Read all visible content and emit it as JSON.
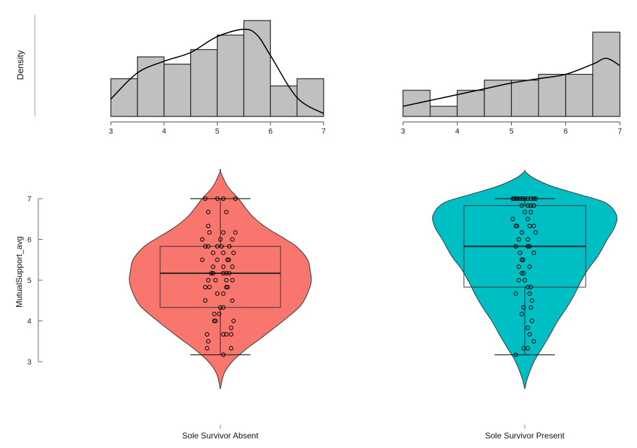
{
  "chart_data": {
    "type": "violin",
    "title": "",
    "xlabel": "",
    "ylabel": "MutualSupport_avg",
    "ylim": [
      3,
      7
    ],
    "yticks": [
      "3",
      "4",
      "5",
      "6",
      "7"
    ],
    "colors": {
      "absent": "#F8766D",
      "present": "#00BFC4",
      "histogram_bar": "#C0C0C0"
    },
    "histograms": [
      {
        "group": "Sole Survivor Absent",
        "ylabel": "Density",
        "xticks": [
          "3",
          "4",
          "5",
          "6",
          "7"
        ],
        "bin_edges": [
          3,
          3.5,
          4,
          4.5,
          5,
          5.5,
          6,
          6.5,
          7
        ],
        "bin_heights": [
          0.26,
          0.41,
          0.36,
          0.46,
          0.56,
          0.66,
          0.21,
          0.26
        ],
        "density_curve": {
          "x": [
            3,
            3.5,
            4,
            4.5,
            5,
            5.5,
            5.75,
            6,
            6.5,
            7
          ],
          "y": [
            0.12,
            0.3,
            0.38,
            0.44,
            0.55,
            0.6,
            0.56,
            0.42,
            0.13,
            0.02
          ]
        }
      },
      {
        "group": "Sole Survivor Present",
        "ylabel": "",
        "xticks": [
          "3",
          "4",
          "5",
          "6",
          "7"
        ],
        "bin_edges": [
          3,
          3.5,
          4,
          4.5,
          5,
          5.5,
          6,
          6.5,
          7
        ],
        "bin_heights": [
          0.18,
          0.07,
          0.18,
          0.25,
          0.25,
          0.29,
          0.29,
          0.58
        ],
        "density_curve": {
          "x": [
            3,
            3.5,
            4,
            4.5,
            5,
            5.5,
            6,
            6.5,
            6.75,
            7
          ],
          "y": [
            0.07,
            0.11,
            0.15,
            0.19,
            0.23,
            0.26,
            0.29,
            0.36,
            0.4,
            0.35
          ]
        }
      }
    ],
    "violins": [
      {
        "group": "Sole Survivor Absent",
        "box": {
          "min": 3.17,
          "q1": 4.33,
          "median": 5.17,
          "q3": 5.83,
          "max": 7.0
        },
        "violin_range": [
          2.33,
          7.67
        ],
        "violin_density": {
          "y": [
            2.33,
            2.7,
            3.0,
            3.3,
            3.6,
            4.0,
            4.3,
            4.5,
            4.8,
            5.0,
            5.2,
            5.5,
            5.8,
            6.0,
            6.3,
            6.6,
            7.0,
            7.3,
            7.67
          ],
          "w": [
            0.0,
            0.04,
            0.13,
            0.28,
            0.46,
            0.69,
            0.85,
            0.92,
            0.98,
            1.0,
            0.99,
            0.96,
            0.85,
            0.72,
            0.5,
            0.34,
            0.2,
            0.08,
            0.0
          ]
        },
        "points": [
          {
            "x": -0.25,
            "y": 7.0
          },
          {
            "x": -0.05,
            "y": 7.0
          },
          {
            "x": 0.05,
            "y": 7.0
          },
          {
            "x": 0.25,
            "y": 7.0
          },
          {
            "x": -0.2,
            "y": 6.67
          },
          {
            "x": 0.1,
            "y": 6.67
          },
          {
            "x": -0.2,
            "y": 6.33
          },
          {
            "x": 0.05,
            "y": 6.17
          },
          {
            "x": 0.25,
            "y": 6.17
          },
          {
            "x": -0.18,
            "y": 6.17
          },
          {
            "x": -0.3,
            "y": 6.0
          },
          {
            "x": 0.0,
            "y": 6.0
          },
          {
            "x": 0.2,
            "y": 6.0
          },
          {
            "x": -0.25,
            "y": 5.83
          },
          {
            "x": -0.2,
            "y": 5.83
          },
          {
            "x": -0.05,
            "y": 5.83
          },
          {
            "x": 0.02,
            "y": 5.83
          },
          {
            "x": 0.15,
            "y": 5.83
          },
          {
            "x": -0.12,
            "y": 5.67
          },
          {
            "x": 0.05,
            "y": 5.67
          },
          {
            "x": 0.22,
            "y": 5.67
          },
          {
            "x": -0.3,
            "y": 5.5
          },
          {
            "x": -0.05,
            "y": 5.5
          },
          {
            "x": 0.12,
            "y": 5.5
          },
          {
            "x": 0.14,
            "y": 5.5
          },
          {
            "x": -0.12,
            "y": 5.33
          },
          {
            "x": 0.05,
            "y": 5.33
          },
          {
            "x": 0.2,
            "y": 5.33
          },
          {
            "x": -0.15,
            "y": 5.17
          },
          {
            "x": -0.12,
            "y": 5.17
          },
          {
            "x": 0.05,
            "y": 5.17
          },
          {
            "x": 0.1,
            "y": 5.17
          },
          {
            "x": 0.15,
            "y": 5.17
          },
          {
            "x": -0.2,
            "y": 5.0
          },
          {
            "x": -0.08,
            "y": 5.0
          },
          {
            "x": 0.1,
            "y": 5.0
          },
          {
            "x": 0.2,
            "y": 5.0
          },
          {
            "x": -0.25,
            "y": 4.83
          },
          {
            "x": -0.18,
            "y": 4.83
          },
          {
            "x": 0.1,
            "y": 4.83
          },
          {
            "x": 0.12,
            "y": 4.83
          },
          {
            "x": -0.05,
            "y": 4.67
          },
          {
            "x": 0.05,
            "y": 4.67
          },
          {
            "x": -0.25,
            "y": 4.5
          },
          {
            "x": 0.2,
            "y": 4.5
          },
          {
            "x": 0.0,
            "y": 4.33
          },
          {
            "x": 0.05,
            "y": 4.33
          },
          {
            "x": -0.1,
            "y": 4.17
          },
          {
            "x": -0.02,
            "y": 4.17
          },
          {
            "x": -0.1,
            "y": 4.0
          },
          {
            "x": -0.08,
            "y": 4.0
          },
          {
            "x": 0.22,
            "y": 4.0
          },
          {
            "x": 0.18,
            "y": 3.83
          },
          {
            "x": -0.22,
            "y": 3.67
          },
          {
            "x": 0.05,
            "y": 3.67
          },
          {
            "x": 0.1,
            "y": 3.67
          },
          {
            "x": 0.18,
            "y": 3.67
          },
          {
            "x": -0.2,
            "y": 3.5
          },
          {
            "x": -0.22,
            "y": 3.33
          },
          {
            "x": 0.18,
            "y": 3.33
          },
          {
            "x": 0.05,
            "y": 3.17
          }
        ]
      },
      {
        "group": "Sole Survivor Present",
        "box": {
          "min": 3.17,
          "q1": 4.83,
          "median": 5.83,
          "q3": 6.83,
          "max": 7.0
        },
        "violin_range": [
          2.33,
          7.67
        ],
        "violin_density": {
          "y": [
            2.33,
            2.6,
            3.0,
            3.3,
            3.6,
            4.0,
            4.3,
            4.6,
            5.0,
            5.3,
            5.6,
            6.0,
            6.3,
            6.6,
            6.9,
            7.1,
            7.3,
            7.5,
            7.67
          ],
          "w": [
            0.0,
            0.03,
            0.1,
            0.18,
            0.26,
            0.36,
            0.45,
            0.53,
            0.62,
            0.7,
            0.8,
            0.9,
            0.98,
            1.0,
            0.88,
            0.6,
            0.3,
            0.1,
            0.0
          ]
        },
        "points": [
          {
            "x": -0.2,
            "y": 7.0
          },
          {
            "x": -0.18,
            "y": 7.0
          },
          {
            "x": -0.15,
            "y": 7.0
          },
          {
            "x": -0.12,
            "y": 7.0
          },
          {
            "x": -0.08,
            "y": 7.0
          },
          {
            "x": -0.04,
            "y": 7.0
          },
          {
            "x": 0.0,
            "y": 7.0
          },
          {
            "x": 0.05,
            "y": 7.0
          },
          {
            "x": 0.1,
            "y": 7.0
          },
          {
            "x": 0.15,
            "y": 7.0
          },
          {
            "x": 0.18,
            "y": 7.0
          },
          {
            "x": -0.05,
            "y": 6.83
          },
          {
            "x": 0.05,
            "y": 6.83
          },
          {
            "x": 0.1,
            "y": 6.83
          },
          {
            "x": 0.15,
            "y": 6.83
          },
          {
            "x": 0.0,
            "y": 6.67
          },
          {
            "x": 0.1,
            "y": 6.67
          },
          {
            "x": -0.2,
            "y": 6.5
          },
          {
            "x": 0.05,
            "y": 6.5
          },
          {
            "x": -0.15,
            "y": 6.33
          },
          {
            "x": -0.13,
            "y": 6.33
          },
          {
            "x": 0.08,
            "y": 6.33
          },
          {
            "x": 0.15,
            "y": 6.33
          },
          {
            "x": -0.05,
            "y": 6.17
          },
          {
            "x": 0.18,
            "y": 6.17
          },
          {
            "x": -0.1,
            "y": 6.0
          },
          {
            "x": 0.05,
            "y": 6.0
          },
          {
            "x": -0.15,
            "y": 5.83
          },
          {
            "x": 0.05,
            "y": 5.83
          },
          {
            "x": 0.08,
            "y": 5.83
          },
          {
            "x": -0.08,
            "y": 5.67
          },
          {
            "x": 0.15,
            "y": 5.67
          },
          {
            "x": -0.05,
            "y": 5.5
          },
          {
            "x": -0.03,
            "y": 5.5
          },
          {
            "x": -0.1,
            "y": 5.33
          },
          {
            "x": 0.08,
            "y": 5.33
          },
          {
            "x": -0.05,
            "y": 5.17
          },
          {
            "x": -0.02,
            "y": 5.17
          },
          {
            "x": -0.1,
            "y": 5.0
          },
          {
            "x": 0.0,
            "y": 5.0
          },
          {
            "x": 0.05,
            "y": 4.83
          },
          {
            "x": 0.1,
            "y": 4.83
          },
          {
            "x": -0.15,
            "y": 4.67
          },
          {
            "x": 0.08,
            "y": 4.67
          },
          {
            "x": 0.12,
            "y": 4.5
          },
          {
            "x": -0.02,
            "y": 4.33
          },
          {
            "x": 0.1,
            "y": 4.33
          },
          {
            "x": -0.05,
            "y": 4.17
          },
          {
            "x": 0.12,
            "y": 4.0
          },
          {
            "x": 0.05,
            "y": 3.83
          },
          {
            "x": 0.08,
            "y": 3.67
          },
          {
            "x": 0.15,
            "y": 3.5
          },
          {
            "x": -0.02,
            "y": 3.33
          },
          {
            "x": 0.05,
            "y": 3.33
          },
          {
            "x": -0.15,
            "y": 3.17
          }
        ]
      }
    ]
  }
}
